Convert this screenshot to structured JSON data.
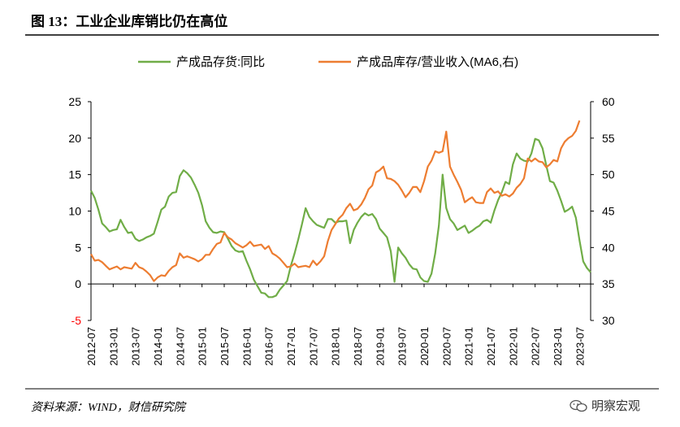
{
  "figure_title": "图 13：工业企业库销比仍在高位",
  "source": "资料来源：WIND，财信研究院",
  "watermark": "明察宏观",
  "chart_data": {
    "type": "line",
    "legend_position": "top",
    "grid": false,
    "x_ticks": [
      "2012-07",
      "2013-01",
      "2013-07",
      "2014-01",
      "2014-07",
      "2015-01",
      "2015-07",
      "2016-01",
      "2016-07",
      "2017-01",
      "2017-07",
      "2018-01",
      "2018-07",
      "2019-01",
      "2019-07",
      "2020-01",
      "2020-07",
      "2021-01",
      "2021-07",
      "2022-01",
      "2022-07",
      "2023-01",
      "2023-07"
    ],
    "y_left": {
      "min": -5,
      "max": 25,
      "ticks": [
        -5,
        0,
        5,
        10,
        15,
        20,
        25
      ]
    },
    "y_right": {
      "min": 30,
      "max": 60,
      "ticks": [
        30,
        35,
        40,
        45,
        50,
        55,
        60
      ]
    },
    "series": [
      {
        "name": "产成品存货:同比",
        "axis": "left",
        "color": "#70AD47",
        "points": [
          [
            "2012-07",
            12.8
          ],
          [
            "2012-08",
            11.8
          ],
          [
            "2012-09",
            10.2
          ],
          [
            "2012-10",
            8.3
          ],
          [
            "2012-11",
            7.8
          ],
          [
            "2012-12",
            7.2
          ],
          [
            "2013-01",
            7.4
          ],
          [
            "2013-02",
            7.5
          ],
          [
            "2013-03",
            8.8
          ],
          [
            "2013-04",
            7.8
          ],
          [
            "2013-05",
            7.0
          ],
          [
            "2013-06",
            7.1
          ],
          [
            "2013-07",
            6.2
          ],
          [
            "2013-08",
            5.9
          ],
          [
            "2013-09",
            6.1
          ],
          [
            "2013-10",
            6.4
          ],
          [
            "2013-11",
            6.6
          ],
          [
            "2013-12",
            6.9
          ],
          [
            "2014-01",
            8.5
          ],
          [
            "2014-02",
            10.2
          ],
          [
            "2014-03",
            10.6
          ],
          [
            "2014-04",
            12.0
          ],
          [
            "2014-05",
            12.5
          ],
          [
            "2014-06",
            12.6
          ],
          [
            "2014-07",
            14.8
          ],
          [
            "2014-08",
            15.6
          ],
          [
            "2014-09",
            15.2
          ],
          [
            "2014-10",
            14.6
          ],
          [
            "2014-11",
            13.6
          ],
          [
            "2014-12",
            12.5
          ],
          [
            "2015-01",
            10.8
          ],
          [
            "2015-02",
            8.6
          ],
          [
            "2015-03",
            7.7
          ],
          [
            "2015-04",
            7.1
          ],
          [
            "2015-05",
            7.0
          ],
          [
            "2015-06",
            7.2
          ],
          [
            "2015-07",
            7.1
          ],
          [
            "2015-08",
            6.2
          ],
          [
            "2015-09",
            5.2
          ],
          [
            "2015-10",
            4.6
          ],
          [
            "2015-11",
            4.4
          ],
          [
            "2015-12",
            4.5
          ],
          [
            "2016-01",
            3.2
          ],
          [
            "2016-02",
            2.0
          ],
          [
            "2016-03",
            0.6
          ],
          [
            "2016-04",
            -0.3
          ],
          [
            "2016-05",
            -1.2
          ],
          [
            "2016-06",
            -1.3
          ],
          [
            "2016-07",
            -1.8
          ],
          [
            "2016-08",
            -1.8
          ],
          [
            "2016-09",
            -1.6
          ],
          [
            "2016-10",
            -0.8
          ],
          [
            "2016-11",
            -0.2
          ],
          [
            "2016-12",
            0.4
          ],
          [
            "2017-01",
            2.5
          ],
          [
            "2017-02",
            4.2
          ],
          [
            "2017-03",
            6.1
          ],
          [
            "2017-04",
            8.2
          ],
          [
            "2017-05",
            10.4
          ],
          [
            "2017-06",
            9.2
          ],
          [
            "2017-07",
            8.6
          ],
          [
            "2017-08",
            8.1
          ],
          [
            "2017-09",
            7.9
          ],
          [
            "2017-10",
            7.7
          ],
          [
            "2017-11",
            8.9
          ],
          [
            "2017-12",
            8.9
          ],
          [
            "2018-01",
            8.4
          ],
          [
            "2018-02",
            8.6
          ],
          [
            "2018-03",
            8.6
          ],
          [
            "2018-04",
            8.7
          ],
          [
            "2018-05",
            5.6
          ],
          [
            "2018-06",
            7.4
          ],
          [
            "2018-07",
            8.4
          ],
          [
            "2018-08",
            9.2
          ],
          [
            "2018-09",
            9.7
          ],
          [
            "2018-10",
            9.4
          ],
          [
            "2018-11",
            9.6
          ],
          [
            "2018-12",
            8.9
          ],
          [
            "2019-01",
            7.6
          ],
          [
            "2019-02",
            7.0
          ],
          [
            "2019-03",
            6.4
          ],
          [
            "2019-04",
            4.5
          ],
          [
            "2019-05",
            0.3
          ],
          [
            "2019-06",
            5.0
          ],
          [
            "2019-07",
            4.2
          ],
          [
            "2019-08",
            3.6
          ],
          [
            "2019-09",
            2.7
          ],
          [
            "2019-10",
            2.1
          ],
          [
            "2019-11",
            2.0
          ],
          [
            "2019-12",
            0.9
          ],
          [
            "2020-01",
            0.4
          ],
          [
            "2020-02",
            0.3
          ],
          [
            "2020-03",
            1.4
          ],
          [
            "2020-04",
            4.2
          ],
          [
            "2020-05",
            8.0
          ],
          [
            "2020-06",
            15.0
          ],
          [
            "2020-07",
            10.4
          ],
          [
            "2020-08",
            8.9
          ],
          [
            "2020-09",
            8.3
          ],
          [
            "2020-10",
            7.4
          ],
          [
            "2020-11",
            7.7
          ],
          [
            "2020-12",
            8.0
          ],
          [
            "2021-01",
            7.0
          ],
          [
            "2021-02",
            7.3
          ],
          [
            "2021-03",
            7.7
          ],
          [
            "2021-04",
            8.0
          ],
          [
            "2021-05",
            8.6
          ],
          [
            "2021-06",
            8.8
          ],
          [
            "2021-07",
            8.4
          ],
          [
            "2021-08",
            10.1
          ],
          [
            "2021-09",
            11.5
          ],
          [
            "2021-10",
            12.6
          ],
          [
            "2021-11",
            14.0
          ],
          [
            "2021-12",
            13.7
          ],
          [
            "2022-01",
            16.4
          ],
          [
            "2022-02",
            17.9
          ],
          [
            "2022-03",
            17.2
          ],
          [
            "2022-04",
            16.9
          ],
          [
            "2022-05",
            16.8
          ],
          [
            "2022-06",
            17.9
          ],
          [
            "2022-07",
            19.9
          ],
          [
            "2022-08",
            19.7
          ],
          [
            "2022-09",
            18.6
          ],
          [
            "2022-10",
            16.3
          ],
          [
            "2022-11",
            14.1
          ],
          [
            "2022-12",
            13.9
          ],
          [
            "2023-01",
            12.8
          ],
          [
            "2023-02",
            11.4
          ],
          [
            "2023-03",
            9.9
          ],
          [
            "2023-04",
            10.2
          ],
          [
            "2023-05",
            10.6
          ],
          [
            "2023-06",
            9.1
          ],
          [
            "2023-07",
            6.0
          ],
          [
            "2023-08",
            3.1
          ],
          [
            "2023-09",
            2.2
          ],
          [
            "2023-10",
            1.6
          ]
        ]
      },
      {
        "name": "产成品库存/营业收入(MA6,右)",
        "axis": "right",
        "color": "#ED7D31",
        "points": [
          [
            "2012-07",
            39.1
          ],
          [
            "2012-08",
            38.2
          ],
          [
            "2012-09",
            38.3
          ],
          [
            "2012-10",
            38.0
          ],
          [
            "2012-11",
            37.5
          ],
          [
            "2012-12",
            37.0
          ],
          [
            "2013-01",
            37.2
          ],
          [
            "2013-02",
            37.4
          ],
          [
            "2013-03",
            37.0
          ],
          [
            "2013-04",
            37.3
          ],
          [
            "2013-05",
            37.2
          ],
          [
            "2013-06",
            37.1
          ],
          [
            "2013-07",
            37.9
          ],
          [
            "2013-08",
            37.3
          ],
          [
            "2013-09",
            37.1
          ],
          [
            "2013-10",
            36.7
          ],
          [
            "2013-11",
            36.2
          ],
          [
            "2013-12",
            35.4
          ],
          [
            "2014-01",
            35.9
          ],
          [
            "2014-02",
            36.2
          ],
          [
            "2014-03",
            36.1
          ],
          [
            "2014-04",
            36.8
          ],
          [
            "2014-05",
            37.3
          ],
          [
            "2014-06",
            37.6
          ],
          [
            "2014-07",
            39.2
          ],
          [
            "2014-08",
            38.6
          ],
          [
            "2014-09",
            38.8
          ],
          [
            "2014-10",
            38.6
          ],
          [
            "2014-11",
            38.4
          ],
          [
            "2014-12",
            38.1
          ],
          [
            "2015-01",
            38.4
          ],
          [
            "2015-02",
            39.0
          ],
          [
            "2015-03",
            39.0
          ],
          [
            "2015-04",
            39.8
          ],
          [
            "2015-05",
            40.5
          ],
          [
            "2015-06",
            40.7
          ],
          [
            "2015-07",
            42.0
          ],
          [
            "2015-08",
            41.4
          ],
          [
            "2015-09",
            41.1
          ],
          [
            "2015-10",
            40.6
          ],
          [
            "2015-11",
            40.3
          ],
          [
            "2015-12",
            40.0
          ],
          [
            "2016-01",
            40.3
          ],
          [
            "2016-02",
            40.8
          ],
          [
            "2016-03",
            40.2
          ],
          [
            "2016-04",
            40.3
          ],
          [
            "2016-05",
            40.4
          ],
          [
            "2016-06",
            39.8
          ],
          [
            "2016-07",
            40.2
          ],
          [
            "2016-08",
            39.2
          ],
          [
            "2016-09",
            38.9
          ],
          [
            "2016-10",
            38.5
          ],
          [
            "2016-11",
            37.9
          ],
          [
            "2016-12",
            37.3
          ],
          [
            "2017-01",
            37.4
          ],
          [
            "2017-02",
            37.8
          ],
          [
            "2017-03",
            37.3
          ],
          [
            "2017-04",
            37.4
          ],
          [
            "2017-05",
            37.5
          ],
          [
            "2017-06",
            37.3
          ],
          [
            "2017-07",
            38.2
          ],
          [
            "2017-08",
            37.6
          ],
          [
            "2017-09",
            38.1
          ],
          [
            "2017-10",
            38.8
          ],
          [
            "2017-11",
            40.9
          ],
          [
            "2017-12",
            42.4
          ],
          [
            "2018-01",
            43.2
          ],
          [
            "2018-02",
            44.0
          ],
          [
            "2018-03",
            44.5
          ],
          [
            "2018-04",
            45.4
          ],
          [
            "2018-05",
            46.0
          ],
          [
            "2018-06",
            45.1
          ],
          [
            "2018-07",
            45.3
          ],
          [
            "2018-08",
            45.9
          ],
          [
            "2018-09",
            46.8
          ],
          [
            "2018-10",
            48.0
          ],
          [
            "2018-11",
            48.5
          ],
          [
            "2018-12",
            50.3
          ],
          [
            "2019-01",
            50.6
          ],
          [
            "2019-02",
            51.1
          ],
          [
            "2019-03",
            49.5
          ],
          [
            "2019-04",
            49.4
          ],
          [
            "2019-05",
            49.1
          ],
          [
            "2019-06",
            48.6
          ],
          [
            "2019-07",
            47.8
          ],
          [
            "2019-08",
            46.9
          ],
          [
            "2019-09",
            47.5
          ],
          [
            "2019-10",
            48.3
          ],
          [
            "2019-11",
            48.3
          ],
          [
            "2019-12",
            47.6
          ],
          [
            "2020-01",
            49.1
          ],
          [
            "2020-02",
            51.1
          ],
          [
            "2020-03",
            51.9
          ],
          [
            "2020-04",
            53.2
          ],
          [
            "2020-05",
            53.0
          ],
          [
            "2020-06",
            53.2
          ],
          [
            "2020-07",
            55.9
          ],
          [
            "2020-08",
            51.1
          ],
          [
            "2020-09",
            50.0
          ],
          [
            "2020-10",
            49.0
          ],
          [
            "2020-11",
            47.9
          ],
          [
            "2020-12",
            46.2
          ],
          [
            "2021-01",
            46.6
          ],
          [
            "2021-02",
            46.9
          ],
          [
            "2021-03",
            46.2
          ],
          [
            "2021-04",
            46.1
          ],
          [
            "2021-05",
            46.1
          ],
          [
            "2021-06",
            47.6
          ],
          [
            "2021-07",
            48.1
          ],
          [
            "2021-08",
            47.5
          ],
          [
            "2021-09",
            47.7
          ],
          [
            "2021-10",
            47.1
          ],
          [
            "2021-11",
            47.3
          ],
          [
            "2021-12",
            47.0
          ],
          [
            "2022-01",
            47.4
          ],
          [
            "2022-02",
            48.2
          ],
          [
            "2022-03",
            48.7
          ],
          [
            "2022-04",
            49.5
          ],
          [
            "2022-05",
            52.2
          ],
          [
            "2022-06",
            51.8
          ],
          [
            "2022-07",
            52.2
          ],
          [
            "2022-08",
            51.8
          ],
          [
            "2022-09",
            51.7
          ],
          [
            "2022-10",
            51.0
          ],
          [
            "2022-11",
            51.4
          ],
          [
            "2022-12",
            52.0
          ],
          [
            "2023-01",
            51.8
          ],
          [
            "2023-02",
            53.6
          ],
          [
            "2023-03",
            54.5
          ],
          [
            "2023-04",
            55.0
          ],
          [
            "2023-05",
            55.3
          ],
          [
            "2023-06",
            56.0
          ],
          [
            "2023-07",
            57.4
          ]
        ]
      }
    ]
  }
}
